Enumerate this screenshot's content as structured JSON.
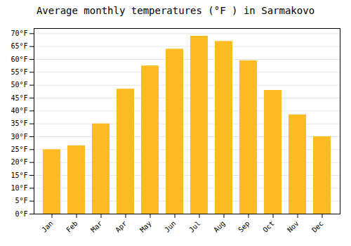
{
  "chart_data": {
    "type": "bar",
    "title": "Average monthly temperatures (°F ) in Sarmakovo",
    "categories": [
      "Jan",
      "Feb",
      "Mar",
      "Apr",
      "May",
      "Jun",
      "Jul",
      "Aug",
      "Sep",
      "Oct",
      "Nov",
      "Dec"
    ],
    "values": [
      25,
      26.5,
      35,
      48.5,
      57.5,
      64,
      69,
      67,
      59.5,
      48,
      38.5,
      30
    ],
    "color": "#FFBB22",
    "ylim": [
      0,
      72
    ],
    "yticks": [
      {
        "value": 0,
        "label": "0°F"
      },
      {
        "value": 5,
        "label": "5°F"
      },
      {
        "value": 10,
        "label": "10°F"
      },
      {
        "value": 15,
        "label": "15°F"
      },
      {
        "value": 20,
        "label": "20°F"
      },
      {
        "value": 25,
        "label": "25°F"
      },
      {
        "value": 30,
        "label": "30°F"
      },
      {
        "value": 35,
        "label": "35°F"
      },
      {
        "value": 40,
        "label": "40°F"
      },
      {
        "value": 45,
        "label": "45°F"
      },
      {
        "value": 50,
        "label": "50°F"
      },
      {
        "value": 55,
        "label": "55°F"
      },
      {
        "value": 60,
        "label": "60°F"
      },
      {
        "value": 65,
        "label": "65°F"
      },
      {
        "value": 70,
        "label": "70°F"
      }
    ],
    "grid": true
  }
}
